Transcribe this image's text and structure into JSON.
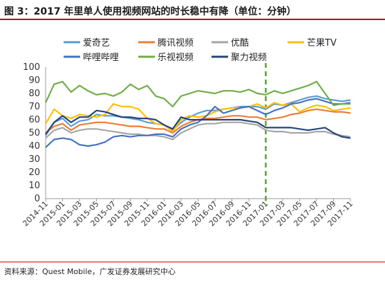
{
  "title": "图 3：2017 年里单人使用视频网站的时长稳中有降（单位：分钟）",
  "source": "资料来源：Quest Mobile，广发证券发展研究中心",
  "chart_data": {
    "type": "line",
    "x": [
      "2014-11",
      "2014-12",
      "2015-01",
      "2015-02",
      "2015-03",
      "2015-04",
      "2015-05",
      "2015-06",
      "2015-07",
      "2015-08",
      "2015-09",
      "2015-10",
      "2015-11",
      "2015-12",
      "2016-01",
      "2016-02",
      "2016-03",
      "2016-04",
      "2016-05",
      "2016-06",
      "2016-07",
      "2016-08",
      "2016-09",
      "2016-10",
      "2016-11",
      "2016-12",
      "2017-01",
      "2017-02",
      "2017-03",
      "2017-04",
      "2017-05",
      "2017-06",
      "2017-07",
      "2017-08",
      "2017-09",
      "2017-10",
      "2017-11"
    ],
    "xticks": [
      "2014-11",
      "2015-01",
      "2015-03",
      "2015-05",
      "2015-07",
      "2015-09",
      "2015-11",
      "2016-01",
      "2016-03",
      "2016-05",
      "2016-07",
      "2016-09",
      "2016-11",
      "2017-01",
      "2017-03",
      "2017-05",
      "2017-07",
      "2017-09",
      "2017-11"
    ],
    "ylim": [
      0,
      100
    ],
    "yticks": [
      0,
      10,
      20,
      30,
      40,
      50,
      60,
      70,
      80,
      90,
      100
    ],
    "legend_placement": "top",
    "divider_at": "2017-01",
    "series": [
      {
        "name": "爱奇艺",
        "color": "#5b9bd5",
        "dash": "",
        "values": [
          48,
          58,
          61,
          55,
          59,
          60,
          64,
          63,
          63,
          62,
          61,
          60,
          58,
          57,
          56,
          52,
          58,
          62,
          65,
          67,
          67,
          68,
          69,
          70,
          70,
          70,
          68,
          72,
          71,
          73,
          75,
          77,
          78,
          76,
          75,
          74,
          75
        ]
      },
      {
        "name": "腾讯视频",
        "color": "#ed7d31",
        "dash": "",
        "values": [
          50,
          55,
          57,
          52,
          56,
          57,
          58,
          58,
          57,
          56,
          55,
          55,
          54,
          53,
          53,
          50,
          55,
          58,
          60,
          61,
          61,
          62,
          63,
          63,
          62,
          62,
          60,
          61,
          62,
          64,
          65,
          67,
          68,
          67,
          66,
          66,
          65
        ]
      },
      {
        "name": "优酷",
        "color": "#a5a5a5",
        "dash": "",
        "values": [
          46,
          52,
          54,
          50,
          52,
          53,
          53,
          52,
          51,
          50,
          49,
          49,
          48,
          48,
          47,
          45,
          50,
          53,
          56,
          57,
          57,
          58,
          58,
          58,
          57,
          56,
          52,
          51,
          51,
          50,
          50,
          50,
          51,
          51,
          49,
          48,
          47
        ]
      },
      {
        "name": "芒果TV",
        "color": "#ffc000",
        "dash": "",
        "values": [
          57,
          68,
          63,
          61,
          64,
          63,
          62,
          64,
          72,
          70,
          70,
          68,
          61,
          57,
          56,
          51,
          60,
          63,
          62,
          63,
          66,
          68,
          69,
          69,
          70,
          72,
          69,
          73,
          71,
          72,
          66,
          69,
          71,
          70,
          67,
          68,
          69
        ]
      },
      {
        "name": "哔哩哔哩",
        "color": "#4472c4",
        "dash": "",
        "values": [
          39,
          45,
          46,
          45,
          41,
          40,
          41,
          43,
          47,
          48,
          47,
          48,
          48,
          49,
          49,
          47,
          53,
          56,
          58,
          63,
          70,
          65,
          67,
          69,
          70,
          67,
          64,
          67,
          69,
          72,
          73,
          75,
          76,
          74,
          72,
          72,
          73
        ]
      },
      {
        "name": "乐视视频",
        "color": "#70ad47",
        "dash": "",
        "values": [
          73,
          87,
          89,
          81,
          86,
          82,
          79,
          80,
          78,
          81,
          87,
          83,
          86,
          78,
          76,
          70,
          78,
          80,
          82,
          81,
          80,
          82,
          82,
          81,
          83,
          80,
          79,
          82,
          80,
          82,
          84,
          86,
          89,
          80,
          71,
          72,
          72
        ]
      },
      {
        "name": "聚力视频",
        "color": "#264478",
        "dash": "",
        "values": [
          49,
          58,
          63,
          58,
          62,
          62,
          67,
          66,
          64,
          62,
          62,
          61,
          61,
          60,
          56,
          53,
          62,
          60,
          60,
          60,
          60,
          60,
          60,
          60,
          59,
          58,
          54,
          54,
          54,
          54,
          53,
          52,
          53,
          54,
          50,
          47,
          46
        ]
      }
    ]
  }
}
